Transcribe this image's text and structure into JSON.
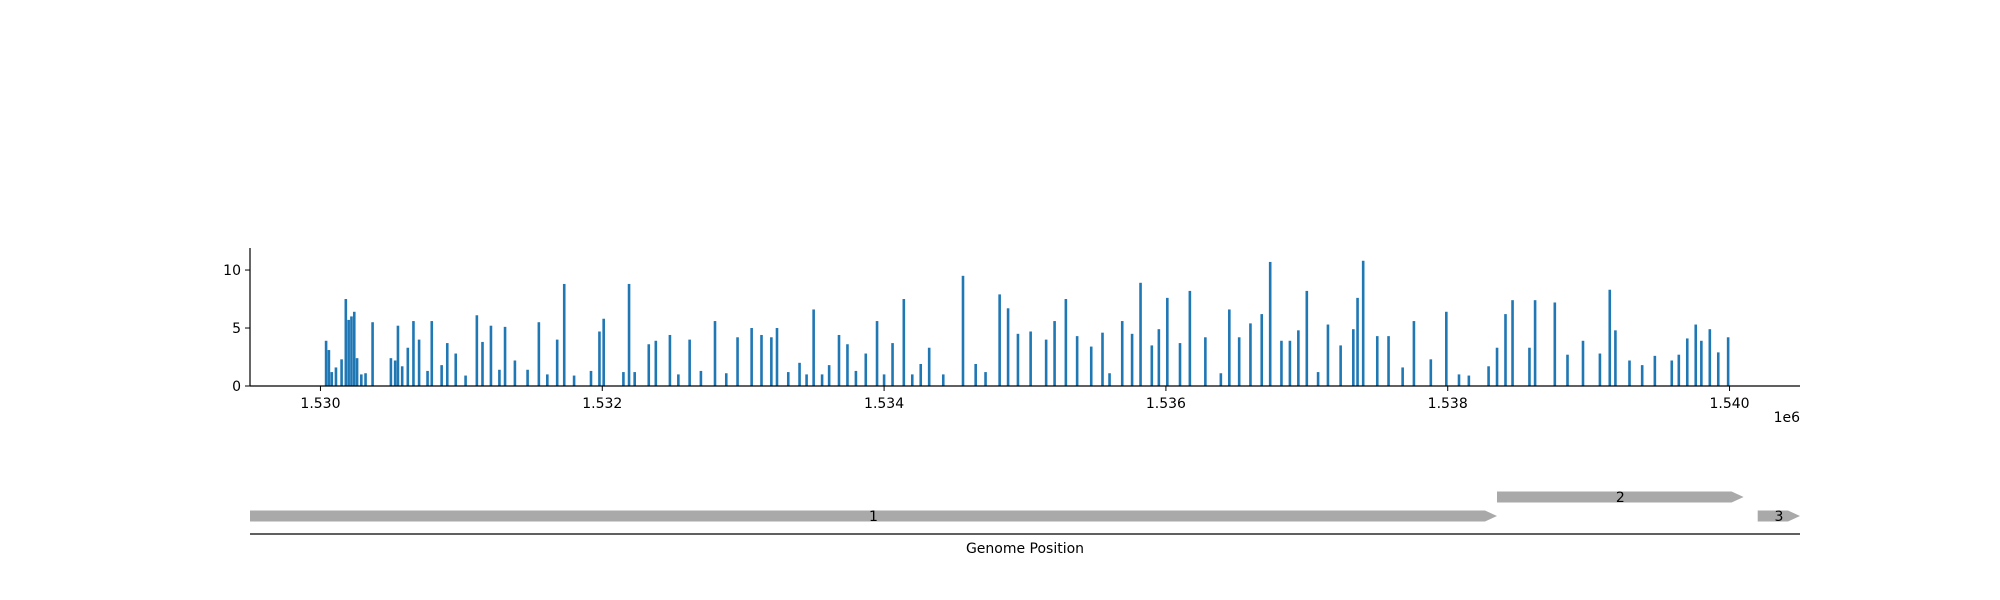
{
  "chart_data": [
    {
      "type": "bar",
      "title": "",
      "xlabel": "",
      "ylabel": "",
      "x_offset_label": "1e6",
      "x_tick_labels": [
        "1.530",
        "1.532",
        "1.534",
        "1.536",
        "1.538",
        "1.540"
      ],
      "x_ticks": [
        1530000,
        1532000,
        1534000,
        1536000,
        1538000,
        1540000
      ],
      "y_tick_labels": [
        "0",
        "5",
        "10"
      ],
      "y_ticks": [
        0,
        5,
        10
      ],
      "xlim": [
        1529500,
        1540500
      ],
      "ylim": [
        0,
        11.9
      ],
      "color": "#1f77b4",
      "x": [
        1530040,
        1530060,
        1530080,
        1530110,
        1530150,
        1530180,
        1530200,
        1530220,
        1530240,
        1530260,
        1530290,
        1530320,
        1530370,
        1530500,
        1530530,
        1530550,
        1530580,
        1530620,
        1530660,
        1530700,
        1530760,
        1530790,
        1530860,
        1530900,
        1530960,
        1531030,
        1531110,
        1531150,
        1531210,
        1531270,
        1531310,
        1531380,
        1531470,
        1531550,
        1531610,
        1531680,
        1531730,
        1531800,
        1531920,
        1531980,
        1532010,
        1532150,
        1532190,
        1532230,
        1532330,
        1532380,
        1532480,
        1532540,
        1532620,
        1532700,
        1532800,
        1532880,
        1532960,
        1533060,
        1533130,
        1533200,
        1533240,
        1533320,
        1533400,
        1533450,
        1533500,
        1533560,
        1533610,
        1533680,
        1533740,
        1533800,
        1533870,
        1533950,
        1534000,
        1534060,
        1534140,
        1534200,
        1534260,
        1534320,
        1534420,
        1534560,
        1534650,
        1534720,
        1534820,
        1534880,
        1534950,
        1535040,
        1535150,
        1535210,
        1535290,
        1535370,
        1535470,
        1535550,
        1535600,
        1535690,
        1535760,
        1535820,
        1535900,
        1535950,
        1536010,
        1536100,
        1536170,
        1536280,
        1536390,
        1536450,
        1536520,
        1536600,
        1536680,
        1536740,
        1536820,
        1536880,
        1536940,
        1537000,
        1537080,
        1537150,
        1537240,
        1537330,
        1537360,
        1537400,
        1537500,
        1537580,
        1537680,
        1537760,
        1537880,
        1537990,
        1538080,
        1538150,
        1538290,
        1538350,
        1538410,
        1538460,
        1538580,
        1538620,
        1538760,
        1538850,
        1538960,
        1539080,
        1539150,
        1539190,
        1539290,
        1539380,
        1539470,
        1539590,
        1539640,
        1539700,
        1539760,
        1539800,
        1539860,
        1539920,
        1539990
      ],
      "values": [
        3.9,
        3.1,
        1.2,
        1.6,
        2.3,
        7.5,
        5.7,
        6.0,
        6.4,
        2.4,
        1.0,
        1.1,
        5.5,
        2.4,
        2.2,
        5.2,
        1.7,
        3.3,
        5.6,
        4.0,
        1.3,
        5.6,
        1.8,
        3.7,
        2.8,
        0.9,
        6.1,
        3.8,
        5.2,
        1.4,
        5.1,
        2.2,
        1.4,
        5.5,
        1.0,
        4.0,
        8.8,
        0.9,
        1.3,
        4.7,
        5.8,
        1.2,
        8.8,
        1.2,
        3.6,
        3.9,
        4.4,
        1.0,
        4.0,
        1.3,
        5.6,
        1.1,
        4.2,
        5.0,
        4.4,
        4.2,
        5.0,
        1.2,
        2.0,
        1.0,
        6.6,
        1.0,
        1.8,
        4.4,
        3.6,
        1.3,
        2.8,
        5.6,
        1.0,
        3.7,
        7.5,
        1.0,
        1.9,
        3.3,
        1.0,
        9.5,
        1.9,
        1.2,
        7.9,
        6.7,
        4.5,
        4.7,
        4.0,
        5.6,
        7.5,
        4.3,
        3.4,
        4.6,
        1.1,
        5.6,
        4.5,
        8.9,
        3.5,
        4.9,
        7.6,
        3.7,
        8.2,
        4.2,
        1.1,
        6.6,
        4.2,
        5.4,
        6.2,
        10.7,
        3.9,
        3.9,
        4.8,
        8.2,
        1.2,
        5.3,
        3.5,
        4.9,
        7.6,
        10.8,
        4.3,
        4.3,
        1.6,
        5.6,
        2.3,
        6.4,
        1.0,
        0.9,
        1.7,
        3.3,
        6.2,
        7.4,
        3.3,
        7.4,
        7.2,
        2.7,
        3.9,
        2.8,
        8.3,
        4.8,
        2.2,
        1.8,
        2.6,
        2.2,
        2.7,
        4.1,
        5.3,
        3.9,
        4.9,
        2.9,
        4.2
      ]
    },
    {
      "type": "gene-track",
      "xlabel": "Genome Position",
      "xlim": [
        1529500,
        1540500
      ],
      "color": "#a9a9a9",
      "genes": [
        {
          "label": "1",
          "start": 1529500,
          "end": 1538350,
          "strand": "+",
          "row": 0
        },
        {
          "label": "2",
          "start": 1538350,
          "end": 1540100,
          "strand": "+",
          "row": 1
        },
        {
          "label": "3",
          "start": 1540200,
          "end": 1540500,
          "strand": "+",
          "row": 0
        }
      ]
    }
  ]
}
